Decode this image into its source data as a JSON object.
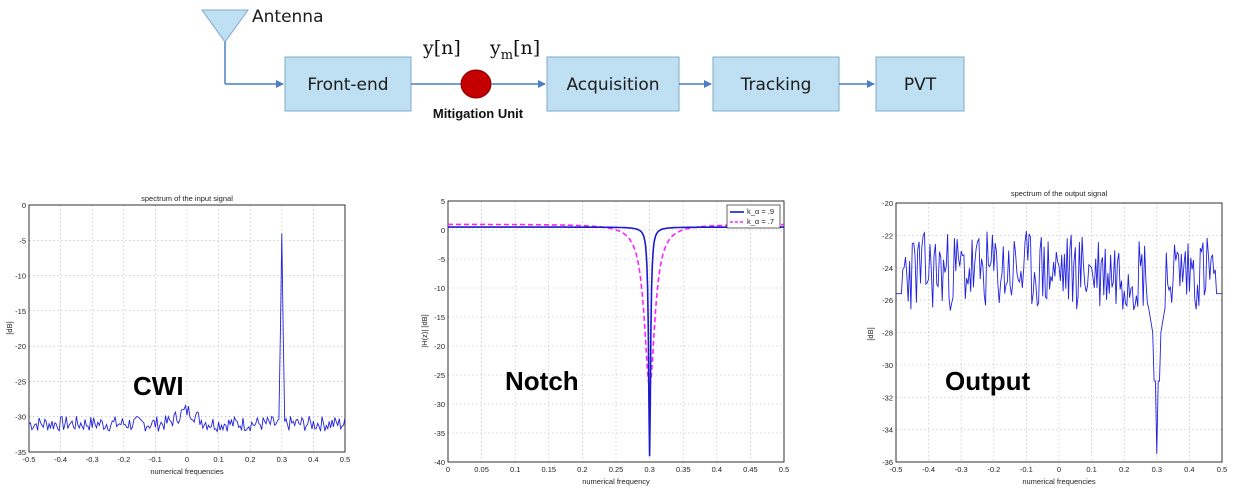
{
  "diagram": {
    "antenna_label": "Antenna",
    "blocks": [
      "Front-end",
      "Acquisition",
      "Tracking",
      "PVT"
    ],
    "signal_in": "y[n]",
    "signal_out_base": "y",
    "signal_out_sub": "m",
    "signal_out_tail": "[n]",
    "mitigation_label": "Mitigation Unit",
    "colors": {
      "block_fill": "#bfe0f3",
      "arrow": "#4a7fc1",
      "mitigation": "#c40000"
    }
  },
  "chart_data": [
    {
      "type": "line",
      "title": "spectrum of the input signal",
      "xlabel": "numerical frequencies",
      "ylabel": "[dB]",
      "overlay_label": "CWI",
      "xlim": [
        -0.5,
        0.5
      ],
      "ylim": [
        -35,
        0
      ],
      "xticks": [
        "-0.5",
        "-0.4",
        "-0.3",
        "-0.2",
        "-0.1",
        "0",
        "0.1",
        "0.2",
        "0.3",
        "0.4",
        "0.5"
      ],
      "yticks": [
        "0",
        "-5",
        "-10",
        "-15",
        "-20",
        "-25",
        "-30",
        "-35"
      ],
      "series": [
        {
          "color": "#2222dd",
          "shape": "noise floor near -31 dB with a narrow peak of -4 dB at 0.3"
        }
      ]
    },
    {
      "type": "line",
      "title": "",
      "xlabel": "numerical frequency",
      "ylabel": "|H(z)| [dB]",
      "overlay_label": "Notch",
      "xlim": [
        0,
        0.5
      ],
      "ylim": [
        -40,
        5
      ],
      "xticks": [
        "0",
        "0.05",
        "0.1",
        "0.15",
        "0.2",
        "0.25",
        "0.3",
        "0.35",
        "0.4",
        "0.45",
        "0.5"
      ],
      "yticks": [
        "5",
        "0",
        "-5",
        "-10",
        "-15",
        "-20",
        "-25",
        "-30",
        "-35",
        "-40"
      ],
      "legend_placement": "top-right",
      "series": [
        {
          "name": "k_α = .9",
          "color": "#1a1acc",
          "style": "solid",
          "notch_at": 0.3,
          "notch_depth_db": -39
        },
        {
          "name": "k_α = .7",
          "color": "#ff22ff",
          "style": "dashed",
          "notch_at": 0.3,
          "notch_depth_db": -27
        }
      ]
    },
    {
      "type": "line",
      "title": "spectrum of the output signal",
      "xlabel": "numerical frequencies",
      "ylabel": "[dB]",
      "overlay_label": "Output",
      "xlim": [
        -0.5,
        0.5
      ],
      "ylim": [
        -36,
        -20
      ],
      "xticks": [
        "-0.5",
        "-0.4",
        "-0.3",
        "-0.2",
        "-0.1",
        "0",
        "0.1",
        "0.2",
        "0.3",
        "0.4",
        "0.5"
      ],
      "yticks": [
        "-20",
        "-22",
        "-24",
        "-26",
        "-28",
        "-30",
        "-32",
        "-34",
        "-36"
      ],
      "series": [
        {
          "color": "#2222dd",
          "shape": "noisy spectrum between -27 and -21 dB with a deep dip of -35.5 dB at 0.3"
        }
      ]
    }
  ]
}
